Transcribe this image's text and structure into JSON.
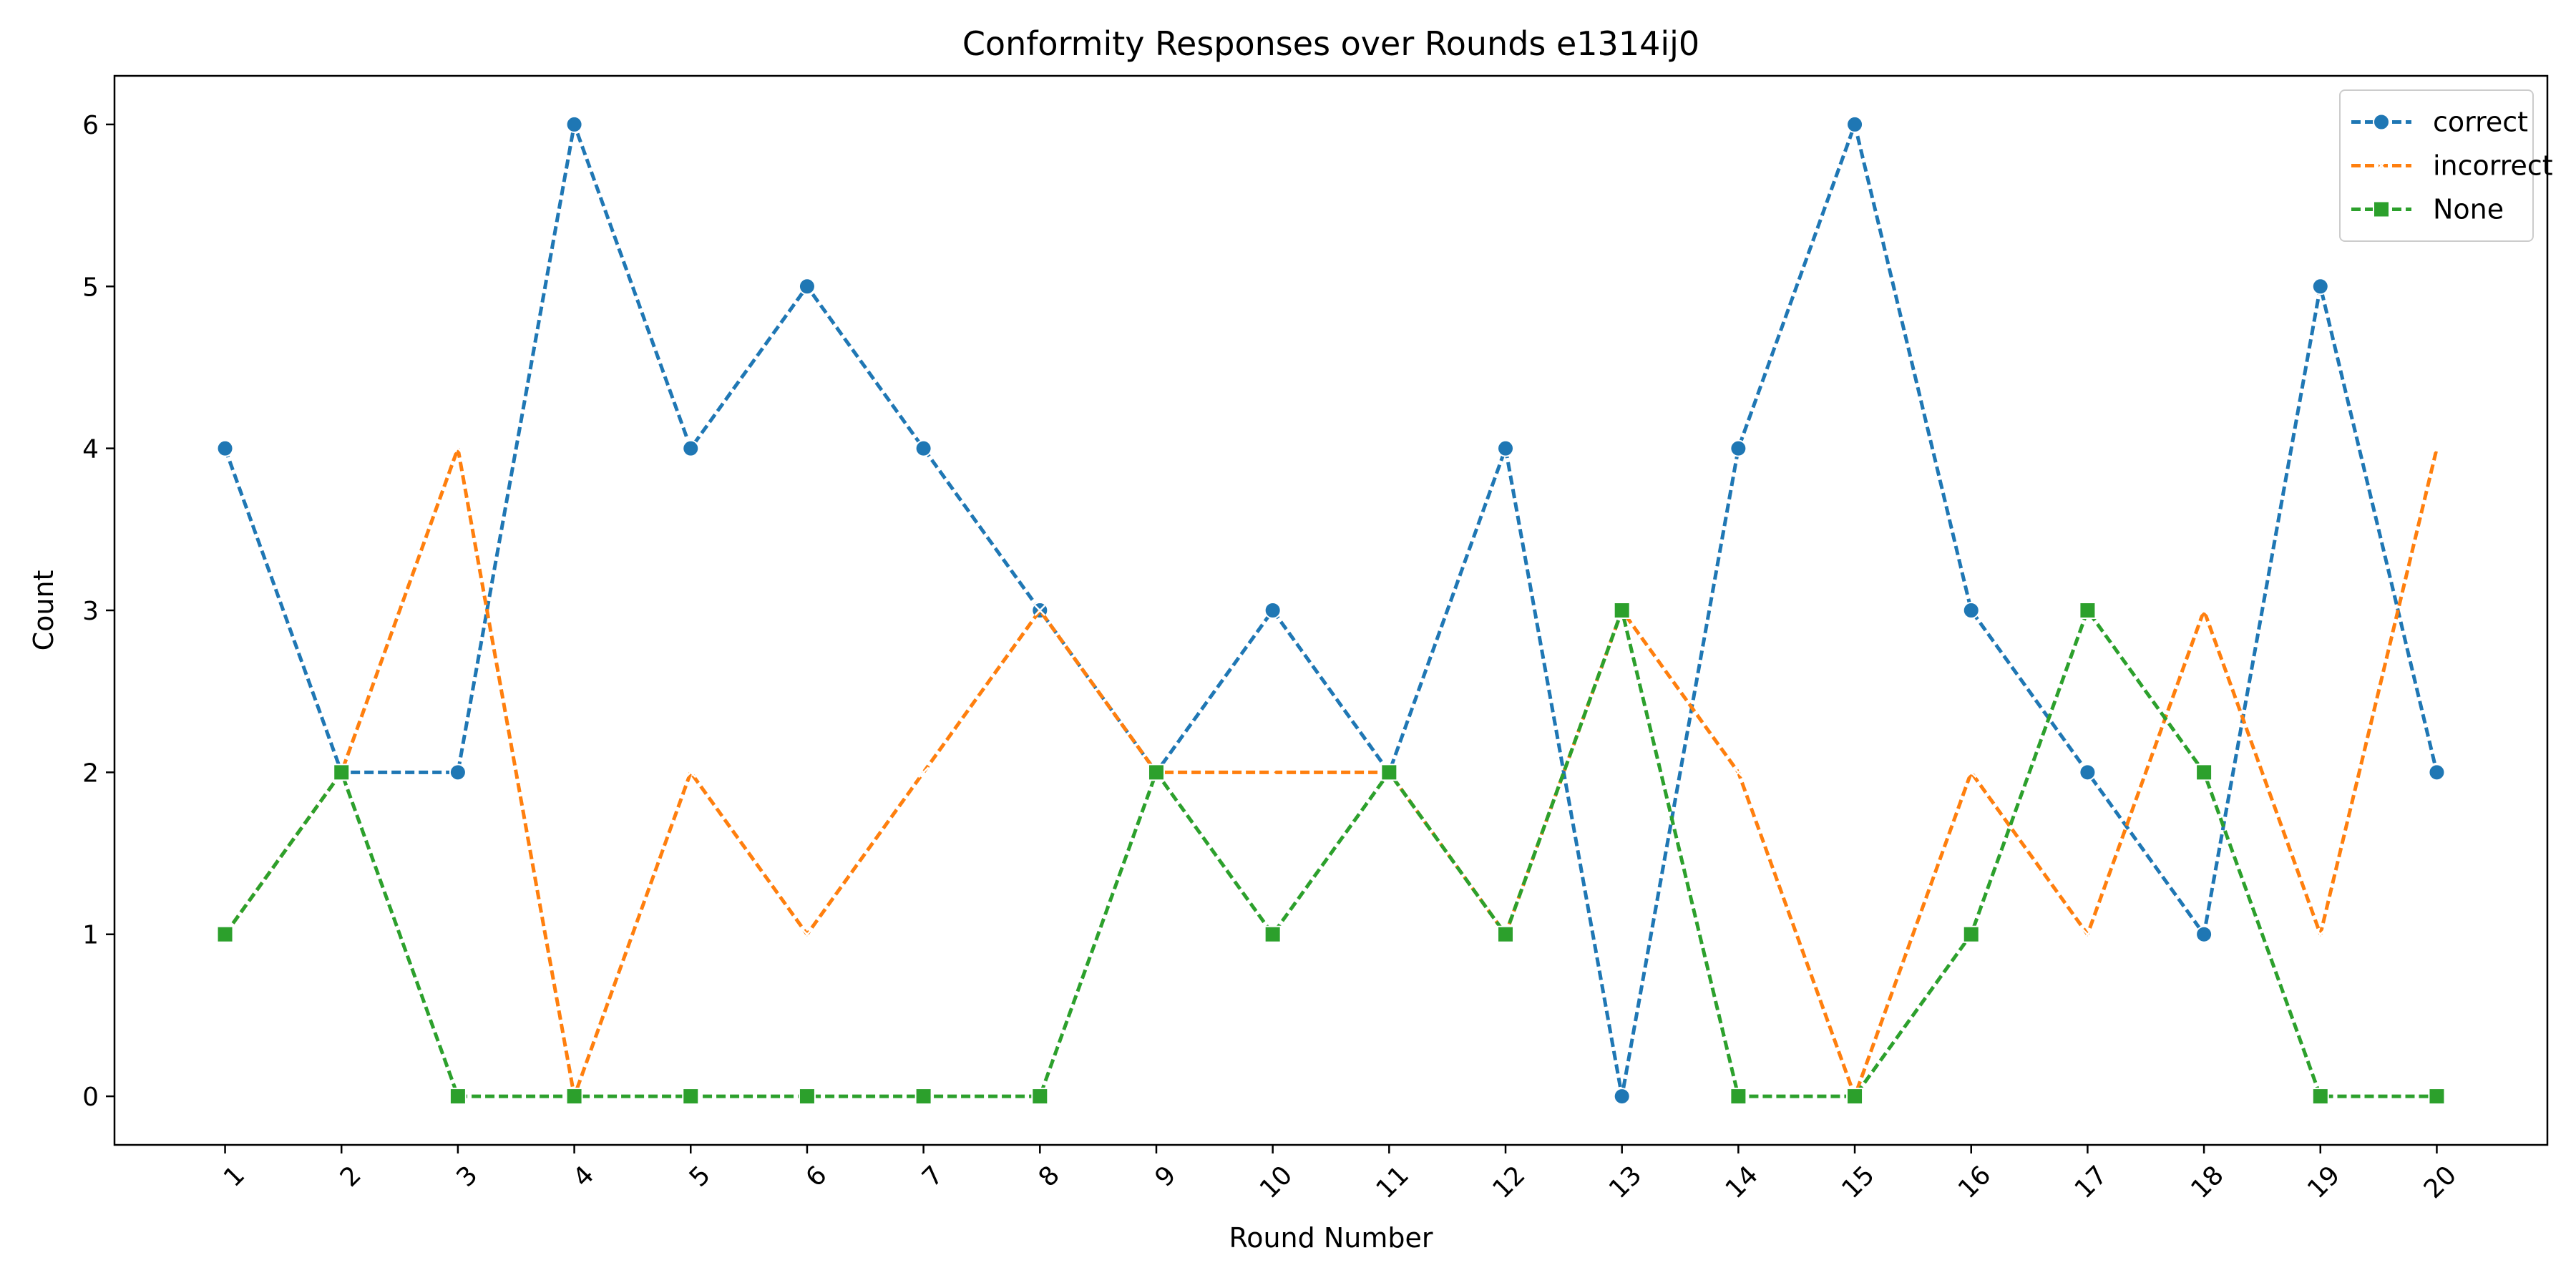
{
  "chart_data": {
    "type": "line",
    "title": "Conformity Responses over Rounds e1314ij0",
    "xlabel": "Round Number",
    "ylabel": "Count",
    "x": [
      1,
      2,
      3,
      4,
      5,
      6,
      7,
      8,
      9,
      10,
      11,
      12,
      13,
      14,
      15,
      16,
      17,
      18,
      19,
      20
    ],
    "xlim": [
      0.05,
      20.95
    ],
    "ylim": [
      -0.3,
      6.3
    ],
    "yticks": [
      0,
      1,
      2,
      3,
      4,
      5,
      6
    ],
    "xtick_rotation": 45,
    "grid": false,
    "legend_position": "top-right",
    "series": [
      {
        "name": "correct",
        "color": "#1f77b4",
        "linestyle": "dashed",
        "marker": "circle",
        "values": [
          4,
          2,
          2,
          6,
          4,
          5,
          4,
          3,
          2,
          3,
          2,
          4,
          0,
          4,
          6,
          3,
          2,
          1,
          5,
          2
        ]
      },
      {
        "name": "incorrect",
        "color": "#ff7f0e",
        "linestyle": "dashed",
        "marker": "x",
        "values": [
          1,
          2,
          4,
          0,
          2,
          1,
          2,
          3,
          2,
          2,
          2,
          1,
          3,
          2,
          0,
          2,
          1,
          3,
          1,
          4
        ]
      },
      {
        "name": "None",
        "color": "#2ca02c",
        "linestyle": "dashed",
        "marker": "square",
        "values": [
          1,
          2,
          0,
          0,
          0,
          0,
          0,
          0,
          2,
          1,
          2,
          1,
          3,
          0,
          0,
          1,
          3,
          2,
          0,
          0
        ]
      }
    ]
  }
}
